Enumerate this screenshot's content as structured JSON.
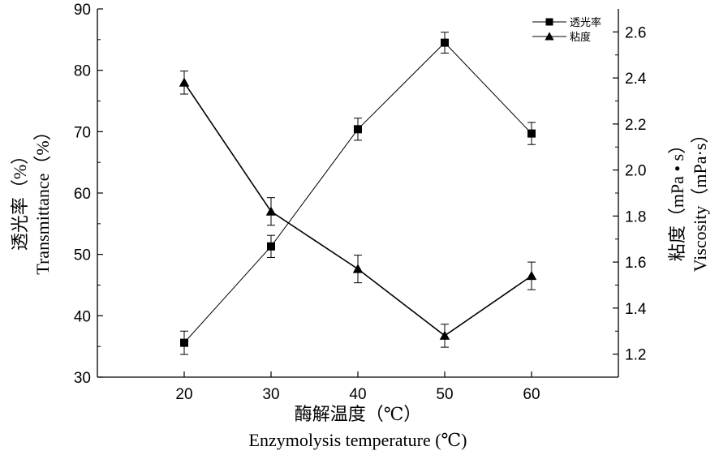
{
  "chart_data": {
    "type": "line",
    "x": [
      20,
      30,
      40,
      50,
      60
    ],
    "xlim": [
      10,
      70
    ],
    "xticks": [
      20,
      30,
      40,
      50,
      60
    ],
    "xlabel_cn": "酶解温度（℃）",
    "xlabel_en": "Enzymolysis temperature (℃)",
    "ylabel_left_cn": "透光率（%）",
    "ylabel_left_en": "Transmittance（%）",
    "ylabel_right_cn": "粘度（mPa • s）",
    "ylabel_right_en": "Viscosity（mPa·s）",
    "ylim_left": [
      30,
      90
    ],
    "yticks_left": [
      30,
      40,
      50,
      60,
      70,
      80,
      90
    ],
    "ylim_right": [
      1.1,
      2.7
    ],
    "yticks_right": [
      "1.2",
      "1.4",
      "1.6",
      "1.8",
      "2.0",
      "2.2",
      "2.4",
      "2.6"
    ],
    "legend_position": "top-right",
    "grid": false,
    "series": [
      {
        "name": "透光率",
        "axis": "left",
        "marker": "square",
        "color": "#000000",
        "values": [
          35.6,
          51.3,
          70.4,
          84.5,
          69.7
        ],
        "errors": [
          1.9,
          1.8,
          1.8,
          1.7,
          1.8
        ]
      },
      {
        "name": "粘度",
        "axis": "right",
        "marker": "triangle",
        "color": "#000000",
        "values": [
          2.38,
          1.82,
          1.57,
          1.28,
          1.54
        ],
        "errors": [
          0.05,
          0.06,
          0.06,
          0.05,
          0.06
        ]
      }
    ]
  }
}
